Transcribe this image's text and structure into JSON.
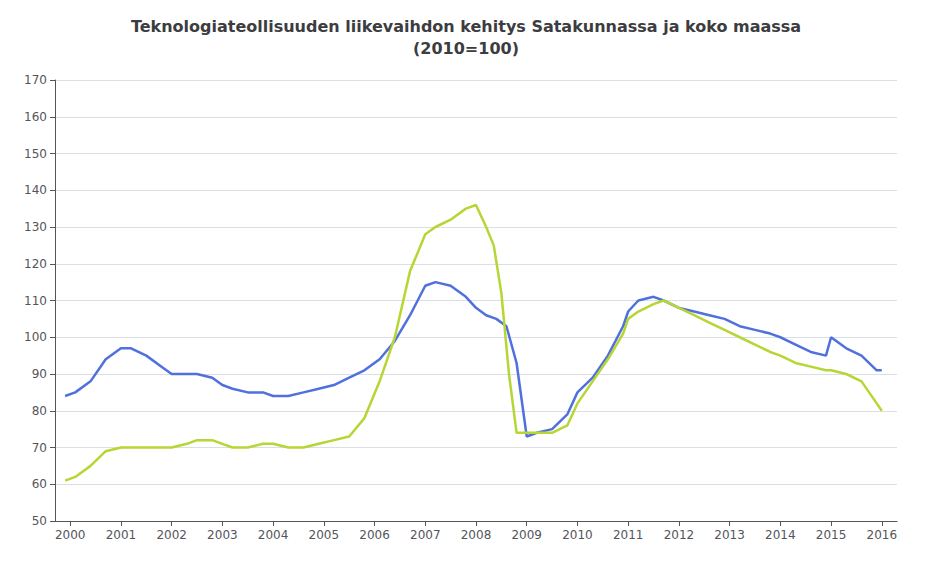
{
  "chart_data": {
    "type": "line",
    "title": "Teknologiateollisuuden liikevaihdon kehitys Satakunnassa ja koko maassa\n(2010=100)",
    "xlim": [
      1999.7,
      2016.3
    ],
    "xticks": [
      2000,
      2001,
      2002,
      2003,
      2004,
      2005,
      2006,
      2007,
      2008,
      2009,
      2010,
      2011,
      2012,
      2013,
      2014,
      2015,
      2016
    ],
    "ylim": [
      50,
      170
    ],
    "yticks": [
      50,
      60,
      70,
      80,
      90,
      100,
      110,
      120,
      130,
      140,
      150,
      160,
      170
    ],
    "grid": true,
    "series": [
      {
        "x": [
          1999.9,
          2000.1,
          2000.4,
          2000.7,
          2001.0,
          2001.2,
          2001.5,
          2001.8,
          2002.0,
          2002.3,
          2002.5,
          2002.8,
          2003.0,
          2003.2,
          2003.5,
          2003.8,
          2004.0,
          2004.3,
          2004.6,
          2004.9,
          2005.2,
          2005.5,
          2005.8,
          2006.1,
          2006.4,
          2006.7,
          2007.0,
          2007.2,
          2007.5,
          2007.8,
          2008.0,
          2008.2,
          2008.4,
          2008.6,
          2008.8,
          2009.0,
          2009.2,
          2009.5,
          2009.8,
          2010.0,
          2010.3,
          2010.6,
          2010.9,
          2011.0,
          2011.2,
          2011.5,
          2011.7,
          2012.0,
          2012.3,
          2012.6,
          2012.9,
          2013.2,
          2013.5,
          2013.8,
          2014.0,
          2014.3,
          2014.6,
          2014.9,
          2015.0,
          2015.3,
          2015.6,
          2015.9,
          2016.0
        ],
        "values": [
          84,
          85,
          88,
          94,
          97,
          97,
          95,
          92,
          90,
          90,
          90,
          89,
          87,
          86,
          85,
          85,
          84,
          84,
          85,
          86,
          87,
          89,
          91,
          94,
          99,
          106,
          114,
          115,
          114,
          111,
          108,
          106,
          105,
          103,
          93,
          73,
          74,
          75,
          79,
          85,
          89,
          95,
          103,
          107,
          110,
          111,
          110,
          108,
          107,
          106,
          105,
          103,
          102,
          101,
          100,
          98,
          96,
          95,
          100,
          97,
          95,
          91,
          91
        ]
      },
      {
        "x": [
          1999.9,
          2000.1,
          2000.4,
          2000.7,
          2001.0,
          2001.2,
          2001.5,
          2001.8,
          2002.0,
          2002.3,
          2002.5,
          2002.8,
          2003.0,
          2003.2,
          2003.5,
          2003.8,
          2004.0,
          2004.3,
          2004.6,
          2004.9,
          2005.2,
          2005.5,
          2005.8,
          2006.1,
          2006.4,
          2006.7,
          2007.0,
          2007.2,
          2007.5,
          2007.8,
          2008.0,
          2008.2,
          2008.35,
          2008.5,
          2008.65,
          2008.8,
          2008.95,
          2009.1,
          2009.3,
          2009.5,
          2009.8,
          2010.0,
          2010.3,
          2010.6,
          2010.9,
          2011.0,
          2011.2,
          2011.5,
          2011.7,
          2012.0,
          2012.3,
          2012.6,
          2012.9,
          2013.2,
          2013.5,
          2013.8,
          2014.0,
          2014.3,
          2014.6,
          2014.9,
          2015.0,
          2015.3,
          2015.6,
          2015.9,
          2016.0
        ],
        "values": [
          61,
          62,
          65,
          69,
          70,
          70,
          70,
          70,
          70,
          71,
          72,
          72,
          71,
          70,
          70,
          71,
          71,
          70,
          70,
          71,
          72,
          73,
          78,
          88,
          100,
          118,
          128,
          130,
          132,
          135,
          136,
          130,
          125,
          112,
          90,
          74,
          74,
          74,
          74,
          74,
          76,
          82,
          88,
          94,
          101,
          105,
          107,
          109,
          110,
          108,
          106,
          104,
          102,
          100,
          98,
          96,
          95,
          93,
          92,
          91,
          91,
          90,
          88,
          82,
          80
        ]
      }
    ]
  }
}
